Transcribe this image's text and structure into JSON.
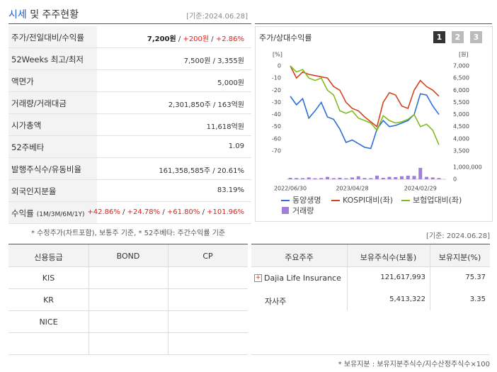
{
  "header": {
    "title_main": "시세",
    "title_rest": "및 주주현황",
    "date": "[기준:2024.06.28]"
  },
  "summary": {
    "rows": [
      {
        "label": "주가/전일대비/수익률",
        "value": [
          "7,200원",
          " / ",
          "+200원",
          " / ",
          "+2.86%"
        ]
      },
      {
        "label": "52Weeks 최고/최저",
        "value": [
          "7,500원 / 3,355원"
        ]
      },
      {
        "label": "액면가",
        "value": [
          "5,000원"
        ]
      },
      {
        "label": "거래량/거래대금",
        "value": [
          "2,301,850주 / 163억원"
        ]
      },
      {
        "label": "시가총액",
        "value": [
          "11,618억원"
        ]
      },
      {
        "label": "52주베타",
        "value": [
          "1.09"
        ]
      },
      {
        "label": "발행주식수/유동비율",
        "value": [
          "161,358,585주 / 20.61%"
        ]
      },
      {
        "label": "외국인지분율",
        "value": [
          "83.19%"
        ]
      },
      {
        "label": "수익률",
        "label_note": "(1M/3M/6M/1Y)",
        "value": [
          "+42.86%",
          " / ",
          "+24.78%",
          " / ",
          "+61.80%",
          " / ",
          "+101.96%"
        ]
      }
    ],
    "note": "* 수정주가(차트포함), 보통주 기준, * 52주베타: 주간수익률 기준"
  },
  "chart_data": {
    "type": "line",
    "title": "주가/상대수익률",
    "tabs": [
      "1",
      "2",
      "3"
    ],
    "y_unit": "[%]",
    "y2_unit": "[원]",
    "categories": [
      "2022/06/30",
      null,
      null,
      null,
      null,
      null,
      null,
      null,
      null,
      null,
      "2023/04/28",
      null,
      null,
      null,
      null,
      null,
      null,
      null,
      null,
      null,
      null,
      "2024/02/29",
      null,
      null,
      null
    ],
    "ylim": [
      -70,
      0
    ],
    "yticks": [
      0,
      -10,
      -20,
      -30,
      -40,
      -50,
      -60,
      -70
    ],
    "y2lim": [
      3500,
      7000
    ],
    "y2ticks": [
      {
        "value": 7000,
        "label": "7,000"
      },
      {
        "value": 6500,
        "label": "6,500"
      },
      {
        "value": 6000,
        "label": "6,000"
      },
      {
        "value": 5500,
        "label": "5,500"
      },
      {
        "value": 5000,
        "label": "5,000"
      },
      {
        "value": 4500,
        "label": "4,500"
      },
      {
        "value": 4000,
        "label": "4,000"
      },
      {
        "value": 3500,
        "label": "3,500"
      }
    ],
    "vlim": [
      0,
      1000000
    ],
    "vticks": [
      {
        "value": 1000000,
        "label": "1,000,000"
      },
      0
    ],
    "series": [
      {
        "name": "동양생명",
        "color": "#2d6fd6",
        "axis": "y2",
        "values": [
          5750,
          5400,
          5650,
          4850,
          5150,
          5500,
          4900,
          4800,
          4400,
          3850,
          3950,
          3800,
          3650,
          3600,
          4400,
          4750,
          4500,
          4550,
          4650,
          4750,
          5000,
          5850,
          5800,
          5350,
          5000
        ]
      },
      {
        "name": "KOSPI대비(좌)",
        "color": "#d2421d",
        "values": [
          0,
          -10,
          -5,
          -7,
          -8,
          -9,
          -10,
          -17,
          -20,
          -30,
          -35,
          -37,
          -42,
          -46,
          -50,
          -30,
          -22,
          -24,
          -33,
          -35,
          -20,
          -12,
          -17,
          -20,
          -25
        ]
      },
      {
        "name": "보험업대비(좌)",
        "color": "#7fba1e",
        "values": [
          0,
          -5,
          -3,
          -10,
          -12,
          -10,
          -20,
          -24,
          -37,
          -39,
          -37,
          -43,
          -45,
          -47,
          -53,
          -41,
          -45,
          -47,
          -46,
          -44,
          -40,
          -50,
          -48,
          -53,
          -65
        ]
      }
    ],
    "volume": {
      "name": "거래량",
      "color": "#a07fd8",
      "values": [
        120000,
        100000,
        90000,
        150000,
        80000,
        100000,
        200000,
        90000,
        130000,
        80000,
        150000,
        250000,
        100000,
        90000,
        300000,
        120000,
        200000,
        180000,
        250000,
        300000,
        280000,
        950000,
        200000,
        150000,
        100000
      ]
    }
  },
  "credit": {
    "headers": [
      "신용등급",
      "BOND",
      "CP"
    ],
    "rows": [
      "KIS",
      "KR",
      "NICE"
    ]
  },
  "shareholders": {
    "date": "[기준: 2024.06.28]",
    "headers": [
      "주요주주",
      "보유주식수(보통)",
      "보유지분(%)"
    ],
    "rows": [
      [
        "Dajia Life Insurance C…",
        "121,617,993",
        "75.37"
      ],
      [
        "자사주",
        "5,413,322",
        "3.35"
      ]
    ],
    "note": "* 보유지분 : 보유지분주식수/지수산정주식수×100"
  }
}
